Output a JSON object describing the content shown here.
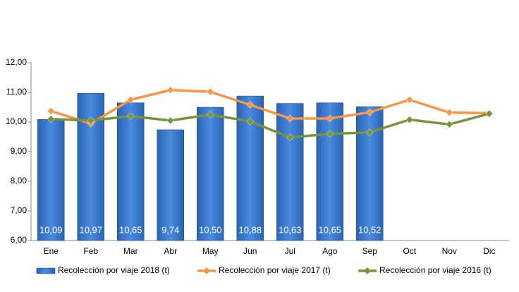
{
  "chart_data": {
    "type": "bar",
    "categories": [
      "Ene",
      "Feb",
      "Mar",
      "Abr",
      "May",
      "Jun",
      "Jul",
      "Ago",
      "Sep",
      "Oct",
      "Nov",
      "Dic"
    ],
    "series": [
      {
        "name": "Recolección por viaje 2018 (t)",
        "type": "bar",
        "color": "#2e6fc4",
        "values": [
          10.09,
          10.97,
          10.65,
          9.74,
          10.5,
          10.88,
          10.63,
          10.65,
          10.52,
          null,
          null,
          null
        ],
        "value_labels": [
          "10,09",
          "10,97",
          "10,65",
          "9,74",
          "10,50",
          "10,88",
          "10,63",
          "10,65",
          "10,52",
          null,
          null,
          null
        ]
      },
      {
        "name": "Recolección por viaje 2017 (t)",
        "type": "line",
        "color": "#f79646",
        "values": [
          10.37,
          9.95,
          10.75,
          11.08,
          11.02,
          10.58,
          10.12,
          10.12,
          10.33,
          10.75,
          10.32,
          10.3
        ]
      },
      {
        "name": "Recolección por viaje 2016 (t)",
        "type": "line",
        "color": "#77933c",
        "values": [
          10.1,
          10.05,
          10.2,
          10.05,
          10.25,
          10.02,
          9.48,
          9.6,
          9.65,
          10.08,
          9.92,
          10.28
        ]
      }
    ],
    "ylim": [
      6,
      12
    ],
    "yticks": [
      {
        "value": 6,
        "label": "6,00"
      },
      {
        "value": 7,
        "label": "7,00"
      },
      {
        "value": 8,
        "label": "8,00"
      },
      {
        "value": 9,
        "label": "9,00"
      },
      {
        "value": 10,
        "label": "10,00"
      },
      {
        "value": 11,
        "label": "11,00"
      },
      {
        "value": 12,
        "label": "12,00"
      }
    ],
    "legend": "bottom"
  }
}
